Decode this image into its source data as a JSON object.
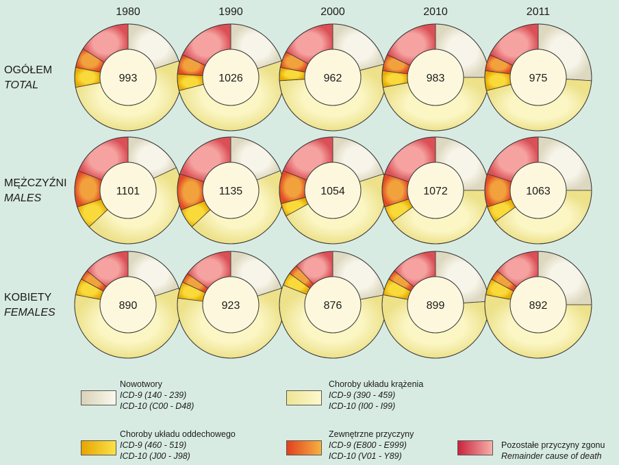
{
  "chart_data": {
    "type": "donut-grid",
    "years": [
      "1980",
      "1990",
      "2000",
      "2010",
      "2011"
    ],
    "groups": [
      {
        "label": "OGÓŁEM",
        "label_en": "TOTAL",
        "totals": [
          993,
          1026,
          962,
          983,
          975
        ],
        "shares": [
          [
            0.2,
            0.52,
            0.06,
            0.06,
            0.16
          ],
          [
            0.2,
            0.51,
            0.05,
            0.06,
            0.18
          ],
          [
            0.21,
            0.53,
            0.04,
            0.05,
            0.17
          ],
          [
            0.25,
            0.47,
            0.05,
            0.05,
            0.18
          ],
          [
            0.26,
            0.45,
            0.06,
            0.05,
            0.18
          ]
        ]
      },
      {
        "label": "MĘŻCZYŹNI",
        "label_en": "MALES",
        "totals": [
          1101,
          1135,
          1054,
          1072,
          1063
        ],
        "shares": [
          [
            0.18,
            0.45,
            0.07,
            0.11,
            0.19
          ],
          [
            0.19,
            0.44,
            0.06,
            0.11,
            0.2
          ],
          [
            0.2,
            0.47,
            0.04,
            0.1,
            0.19
          ],
          [
            0.25,
            0.4,
            0.05,
            0.1,
            0.2
          ],
          [
            0.25,
            0.4,
            0.05,
            0.1,
            0.2
          ]
        ]
      },
      {
        "label": "KOBIETY",
        "label_en": "FEMALES",
        "totals": [
          890,
          923,
          876,
          899,
          892
        ],
        "shares": [
          [
            0.2,
            0.58,
            0.05,
            0.03,
            0.14
          ],
          [
            0.2,
            0.57,
            0.05,
            0.03,
            0.15
          ],
          [
            0.22,
            0.59,
            0.04,
            0.03,
            0.12
          ],
          [
            0.24,
            0.54,
            0.05,
            0.03,
            0.14
          ],
          [
            0.25,
            0.53,
            0.05,
            0.03,
            0.14
          ]
        ]
      }
    ],
    "categories": [
      {
        "name": "Nowotwory",
        "icd9": "ICD-9 (140 - 239)",
        "icd10": "ICD-10 (C00 - D48)",
        "color": "#ece9d8"
      },
      {
        "name": "Choroby układu krążenia",
        "icd9": "ICD-9 (390 - 459)",
        "icd10": "ICD-10 (I00 - I99)",
        "color": "#f6f0a4"
      },
      {
        "name": "Choroby układu oddechowego",
        "icd9": "ICD-9 (460 - 519)",
        "icd10": "ICD-10 (J00 - J98)",
        "color": "#f0c011"
      },
      {
        "name": "Zewnętrzne przyczyny",
        "icd9": "ICD-9 (E800 - E999)",
        "icd10": "ICD-10 (V01 - Y89)",
        "color": "#ec6a25"
      },
      {
        "name": "Pozostałe przyczyny zgonu",
        "name_en": "Remainder cause of death",
        "color": "#e06a6a"
      }
    ]
  }
}
